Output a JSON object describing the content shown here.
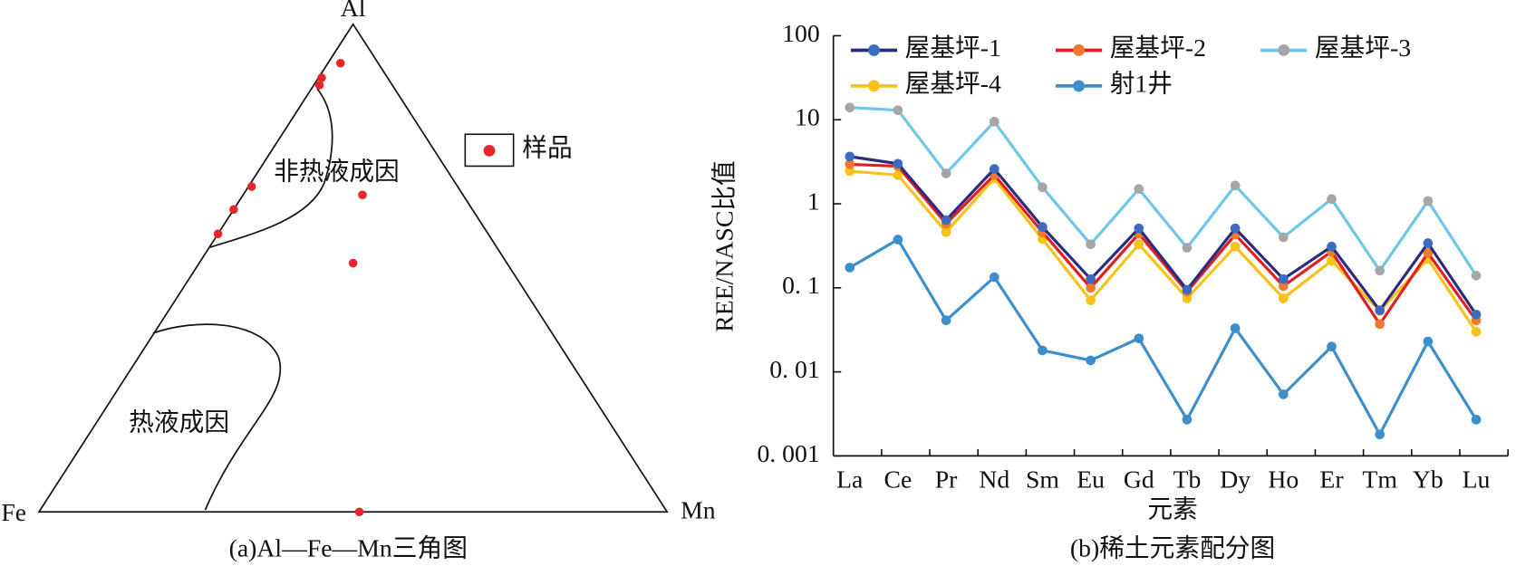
{
  "chart_data": [
    {
      "type": "ternary",
      "axes": [
        "Al",
        "Fe",
        "Mn"
      ],
      "annotations": [
        "非热液成因",
        "热液成因"
      ],
      "caption": "(a)Al—Fe—Mn三角图",
      "series": [
        {
          "name": "样品",
          "color": "#e8262a",
          "Al": [
            92,
            89,
            87.5,
            66.7,
            62,
            57,
            65,
            51,
            0
          ],
          "Fe": [
            6,
            10.5,
            11.6,
            32.8,
            38,
            43,
            16,
            24.5,
            49
          ],
          "Mn": [
            2,
            0.5,
            0.9,
            0.5,
            0,
            0,
            19,
            24.5,
            51
          ]
        }
      ]
    },
    {
      "type": "line",
      "caption": "(b)稀土元素配分图",
      "x_label": "元素",
      "y_label": "REE/NASC比值",
      "log_y": true,
      "categories": [
        "La",
        "Ce",
        "Pr",
        "Nd",
        "Sm",
        "Eu",
        "Gd",
        "Tb",
        "Dy",
        "Ho",
        "Er",
        "Tm",
        "Yb",
        "Lu"
      ],
      "ylim": [
        0.001,
        100
      ],
      "yticks": [
        {
          "value": 0.001,
          "label": "0. 001"
        },
        {
          "value": 0.01,
          "label": "0. 01"
        },
        {
          "value": 0.1,
          "label": "0. 1"
        },
        1,
        10,
        100
      ],
      "series": [
        {
          "name": "屋基坪-1",
          "color": "#2b2c7c",
          "marker_color": "#3b6cc2",
          "values": [
            3.65,
            3.0,
            0.64,
            2.6,
            0.53,
            0.127,
            0.51,
            0.095,
            0.51,
            0.127,
            0.31,
            0.054,
            0.34,
            0.048
          ]
        },
        {
          "name": "屋基坪-2",
          "color": "#e02020",
          "marker_color": "#ee7a2b",
          "values": [
            2.95,
            2.8,
            0.58,
            2.2,
            0.46,
            0.1,
            0.44,
            0.09,
            0.43,
            0.105,
            0.27,
            0.037,
            0.26,
            0.041
          ]
        },
        {
          "name": "屋基坪-3",
          "color": "#6ec6ea",
          "marker_color": "#a6a6a6",
          "values": [
            14,
            13,
            2.3,
            9.5,
            1.57,
            0.33,
            1.5,
            0.3,
            1.65,
            0.4,
            1.14,
            0.16,
            1.08,
            0.14
          ]
        },
        {
          "name": "屋基坪-4",
          "color": "#f7c21a",
          "marker_color": "#f7c21a",
          "values": [
            2.45,
            2.2,
            0.46,
            2.0,
            0.38,
            0.071,
            0.33,
            0.075,
            0.31,
            0.075,
            0.21,
            0.053,
            0.22,
            0.03
          ]
        },
        {
          "name": "射1井",
          "color": "#3d8fcc",
          "marker_color": "#3d8fcc",
          "values": [
            0.174,
            0.376,
            0.041,
            0.134,
            0.018,
            0.0137,
            0.025,
            0.0027,
            0.033,
            0.0054,
            0.02,
            0.0018,
            0.023,
            0.0027
          ]
        }
      ]
    }
  ]
}
